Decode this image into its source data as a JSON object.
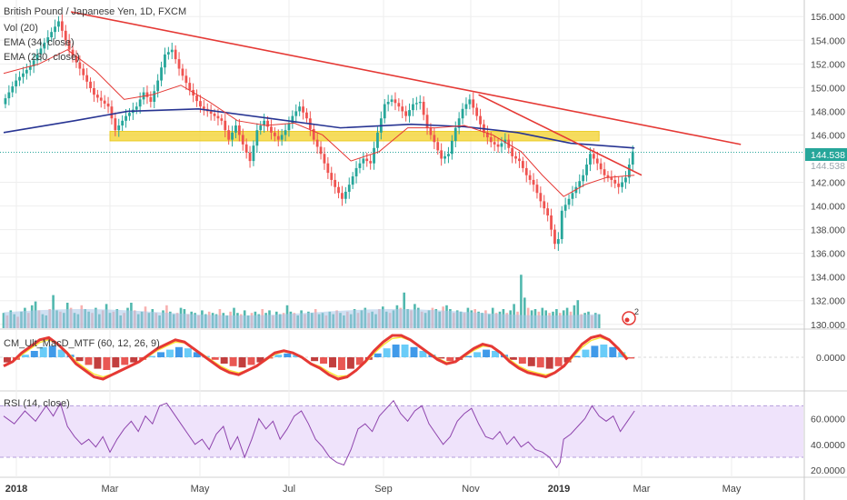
{
  "chart_data": {
    "type": "line",
    "title": "British Pound / Japanese Yen, 1D, FXCM",
    "indicator_labels": [
      "Vol (20)",
      "EMA (34, close)",
      "EMA (230, close)"
    ],
    "macd_label": "CM_Ult_MacD_MTF (60, 12, 26, 9)",
    "rsi_label": "RSI (14, close)",
    "price_axis": {
      "range": [
        129.6,
        157.4
      ],
      "ticks": [
        "156.000",
        "154.000",
        "152.000",
        "150.000",
        "148.000",
        "146.000",
        "142.000",
        "140.000",
        "138.000",
        "136.000",
        "134.000",
        "132.000",
        "130.000"
      ],
      "tick_values": [
        156,
        154,
        152,
        150,
        148,
        146,
        142,
        140,
        138,
        136,
        134,
        132,
        130
      ]
    },
    "last_price": "144.538",
    "last_price_shadow": "144.538",
    "macd_axis": {
      "ticks": [
        "0.0000"
      ]
    },
    "rsi_axis": {
      "ticks": [
        "60.0000",
        "40.0000",
        "20.0000"
      ],
      "tick_values": [
        60,
        40,
        20
      ],
      "range": [
        18,
        78
      ]
    },
    "x_axis": {
      "labels": [
        "2018",
        "Mar",
        "May",
        "Jul",
        "Sep",
        "Nov",
        "2019",
        "Mar",
        "May"
      ]
    },
    "price_path": [
      [
        0,
        148.6
      ],
      [
        4,
        150.6
      ],
      [
        8,
        151.8
      ],
      [
        12,
        153.8
      ],
      [
        16,
        155.6
      ],
      [
        19,
        153.2
      ],
      [
        22,
        151.6
      ],
      [
        26,
        149.4
      ],
      [
        30,
        148.4
      ],
      [
        32,
        146.4
      ],
      [
        35,
        147.6
      ],
      [
        38,
        148.4
      ],
      [
        40,
        149.6
      ],
      [
        42,
        148.8
      ],
      [
        44,
        150.6
      ],
      [
        46,
        152.8
      ],
      [
        48,
        153.2
      ],
      [
        50,
        151.6
      ],
      [
        53,
        149.8
      ],
      [
        56,
        148.4
      ],
      [
        59,
        147.8
      ],
      [
        62,
        147.2
      ],
      [
        64,
        145.6
      ],
      [
        66,
        146.8
      ],
      [
        68,
        145.2
      ],
      [
        70,
        143.8
      ],
      [
        72,
        146.4
      ],
      [
        74,
        147.2
      ],
      [
        76,
        146.2
      ],
      [
        78,
        145.6
      ],
      [
        80,
        146.4
      ],
      [
        82,
        147.6
      ],
      [
        84,
        148.4
      ],
      [
        86,
        147.4
      ],
      [
        88,
        145.6
      ],
      [
        90,
        144.4
      ],
      [
        92,
        142.8
      ],
      [
        94,
        141.6
      ],
      [
        96,
        140.6
      ],
      [
        98,
        141.8
      ],
      [
        100,
        143.2
      ],
      [
        102,
        144.0
      ],
      [
        104,
        143.6
      ],
      [
        106,
        146.2
      ],
      [
        108,
        148.6
      ],
      [
        110,
        149.0
      ],
      [
        112,
        148.4
      ],
      [
        114,
        147.6
      ],
      [
        116,
        148.6
      ],
      [
        118,
        148.8
      ],
      [
        120,
        146.6
      ],
      [
        122,
        145.4
      ],
      [
        124,
        144.0
      ],
      [
        126,
        144.4
      ],
      [
        128,
        146.6
      ],
      [
        130,
        148.2
      ],
      [
        132,
        149.0
      ],
      [
        134,
        147.6
      ],
      [
        136,
        146.2
      ],
      [
        138,
        145.4
      ],
      [
        140,
        145.0
      ],
      [
        142,
        145.6
      ],
      [
        144,
        144.2
      ],
      [
        146,
        143.8
      ],
      [
        148,
        142.6
      ],
      [
        150,
        141.8
      ],
      [
        152,
        140.4
      ],
      [
        154,
        139.2
      ],
      [
        156,
        136.8
      ],
      [
        157,
        137.2
      ],
      [
        158,
        139.6
      ],
      [
        160,
        140.6
      ],
      [
        162,
        141.6
      ],
      [
        164,
        142.6
      ],
      [
        166,
        144.4
      ],
      [
        168,
        143.6
      ],
      [
        170,
        142.6
      ],
      [
        172,
        142.2
      ],
      [
        174,
        141.6
      ],
      [
        176,
        142.4
      ],
      [
        178,
        144.6
      ]
    ],
    "ema34_path": [
      [
        0,
        151.2
      ],
      [
        10,
        152.0
      ],
      [
        18,
        153.2
      ],
      [
        26,
        151.4
      ],
      [
        34,
        149.0
      ],
      [
        42,
        149.4
      ],
      [
        50,
        150.2
      ],
      [
        58,
        148.8
      ],
      [
        66,
        147.2
      ],
      [
        74,
        146.8
      ],
      [
        82,
        147.0
      ],
      [
        90,
        146.0
      ],
      [
        98,
        143.8
      ],
      [
        106,
        144.6
      ],
      [
        114,
        146.6
      ],
      [
        122,
        146.6
      ],
      [
        130,
        146.8
      ],
      [
        138,
        146.0
      ],
      [
        146,
        144.6
      ],
      [
        152,
        142.6
      ],
      [
        158,
        140.8
      ],
      [
        164,
        141.8
      ],
      [
        170,
        142.4
      ],
      [
        178,
        142.6
      ]
    ],
    "ema230_path": [
      [
        0,
        146.2
      ],
      [
        20,
        147.2
      ],
      [
        35,
        148.0
      ],
      [
        55,
        148.2
      ],
      [
        75,
        147.4
      ],
      [
        95,
        146.6
      ],
      [
        115,
        146.9
      ],
      [
        130,
        146.7
      ],
      [
        145,
        146.2
      ],
      [
        160,
        145.3
      ],
      [
        178,
        144.9
      ]
    ],
    "trendlines": [
      {
        "from": [
          19,
          156.4
        ],
        "to": [
          208,
          145.2
        ],
        "color": "#e53935"
      },
      {
        "from": [
          134,
          149.4
        ],
        "to": [
          180,
          142.6
        ],
        "color": "#e53935"
      }
    ],
    "support_zone": {
      "from_day": 30,
      "to_day": 168,
      "low": 145.5,
      "high": 146.3,
      "color": "#f5d742"
    },
    "volume": [
      1.2,
      1.0,
      1.4,
      1.1,
      0.9,
      1.3,
      1.6,
      1.2,
      1.8,
      2.1,
      1.4,
      1.1,
      1.0,
      1.5,
      2.6,
      1.4,
      1.3,
      1.2,
      2.0,
      1.6,
      1.2,
      1.1,
      1.8,
      1.5,
      1.3,
      1.2,
      1.6,
      1.1,
      1.4,
      1.9,
      1.2,
      1.3,
      1.5,
      1.0,
      1.2,
      1.6,
      2.0,
      1.4,
      1.1,
      1.3,
      1.7,
      1.2,
      1.5,
      1.2,
      1.0,
      1.4,
      1.8,
      1.3,
      1.1,
      1.2,
      1.6,
      1.5,
      1.1,
      1.3,
      1.2,
      1.0,
      1.4,
      1.1,
      1.3,
      1.2,
      1.1,
      1.5,
      1.2,
      1.0,
      1.3,
      1.6,
      1.2,
      1.1,
      1.4,
      1.0,
      1.2,
      1.3,
      1.1,
      1.5,
      1.2,
      1.4,
      1.0,
      1.3,
      1.1,
      1.2,
      1.8,
      1.3,
      1.2,
      1.0,
      1.4,
      1.1,
      1.3,
      1.2,
      1.5,
      1.1,
      1.2,
      1.0,
      1.3,
      1.1,
      1.4,
      1.2,
      1.0,
      1.3,
      1.1,
      1.5,
      1.2,
      1.4,
      1.6,
      1.2,
      1.3,
      1.1,
      1.5,
      1.7,
      1.3,
      1.2,
      1.4,
      1.8,
      1.6,
      2.8,
      1.5,
      1.4,
      1.9,
      1.6,
      1.3,
      1.2,
      1.4,
      1.6,
      1.5,
      1.3,
      1.7,
      1.8,
      1.5,
      1.2,
      1.4,
      1.3,
      1.2,
      1.6,
      1.4,
      1.5,
      1.3,
      1.2,
      1.4,
      1.1,
      1.6,
      1.2,
      1.3,
      1.5,
      1.2,
      1.4,
      1.9,
      1.3,
      4.2,
      2.4,
      1.6,
      1.4,
      1.5,
      1.3,
      1.6,
      1.4,
      1.2,
      1.3,
      1.5,
      1.2,
      1.4,
      1.6,
      1.3,
      1.8,
      2.2,
      1.1,
      1.2,
      1.3,
      1.0,
      1.2,
      1.1
    ],
    "rsi_path": [
      [
        0,
        62
      ],
      [
        3,
        56
      ],
      [
        6,
        66
      ],
      [
        9,
        58
      ],
      [
        12,
        70
      ],
      [
        14,
        62
      ],
      [
        16,
        72
      ],
      [
        18,
        54
      ],
      [
        20,
        46
      ],
      [
        22,
        40
      ],
      [
        24,
        44
      ],
      [
        26,
        38
      ],
      [
        28,
        46
      ],
      [
        30,
        34
      ],
      [
        32,
        44
      ],
      [
        34,
        52
      ],
      [
        36,
        58
      ],
      [
        38,
        50
      ],
      [
        40,
        62
      ],
      [
        42,
        56
      ],
      [
        44,
        70
      ],
      [
        46,
        72
      ],
      [
        48,
        64
      ],
      [
        50,
        56
      ],
      [
        52,
        48
      ],
      [
        54,
        40
      ],
      [
        56,
        44
      ],
      [
        58,
        36
      ],
      [
        60,
        48
      ],
      [
        62,
        54
      ],
      [
        64,
        36
      ],
      [
        66,
        46
      ],
      [
        68,
        30
      ],
      [
        70,
        44
      ],
      [
        72,
        60
      ],
      [
        74,
        52
      ],
      [
        76,
        58
      ],
      [
        78,
        44
      ],
      [
        80,
        52
      ],
      [
        82,
        62
      ],
      [
        84,
        66
      ],
      [
        86,
        56
      ],
      [
        88,
        44
      ],
      [
        90,
        38
      ],
      [
        92,
        30
      ],
      [
        94,
        26
      ],
      [
        96,
        24
      ],
      [
        98,
        36
      ],
      [
        100,
        52
      ],
      [
        102,
        56
      ],
      [
        104,
        50
      ],
      [
        106,
        62
      ],
      [
        108,
        68
      ],
      [
        110,
        74
      ],
      [
        112,
        64
      ],
      [
        114,
        58
      ],
      [
        116,
        66
      ],
      [
        118,
        70
      ],
      [
        120,
        56
      ],
      [
        122,
        48
      ],
      [
        124,
        40
      ],
      [
        126,
        46
      ],
      [
        128,
        58
      ],
      [
        130,
        64
      ],
      [
        132,
        68
      ],
      [
        134,
        56
      ],
      [
        136,
        46
      ],
      [
        138,
        44
      ],
      [
        140,
        50
      ],
      [
        142,
        40
      ],
      [
        144,
        46
      ],
      [
        146,
        38
      ],
      [
        148,
        42
      ],
      [
        150,
        36
      ],
      [
        152,
        34
      ],
      [
        154,
        30
      ],
      [
        156,
        22
      ],
      [
        157,
        26
      ],
      [
        158,
        44
      ],
      [
        160,
        48
      ],
      [
        162,
        54
      ],
      [
        164,
        60
      ],
      [
        166,
        70
      ],
      [
        168,
        62
      ],
      [
        170,
        58
      ],
      [
        172,
        62
      ],
      [
        174,
        50
      ],
      [
        176,
        58
      ],
      [
        178,
        66
      ]
    ],
    "macd_hist": [
      -0.4,
      -0.2,
      0.2,
      0.5,
      0.8,
      0.9,
      0.6,
      0.2,
      -0.3,
      -0.6,
      -0.9,
      -1.0,
      -0.8,
      -0.6,
      -0.4,
      -0.2,
      0.1,
      0.4,
      0.6,
      0.8,
      0.7,
      0.4,
      0.1,
      -0.2,
      -0.5,
      -0.7,
      -0.8,
      -0.6,
      -0.4,
      -0.1,
      0.2,
      0.3,
      0.2,
      0.0,
      -0.3,
      -0.5,
      -0.8,
      -1.0,
      -0.9,
      -0.6,
      -0.2,
      0.3,
      0.7,
      1.0,
      1.0,
      0.8,
      0.5,
      0.2,
      -0.1,
      -0.3,
      -0.2,
      0.1,
      0.4,
      0.6,
      0.5,
      0.2,
      -0.2,
      -0.5,
      -0.7,
      -0.8,
      -0.9,
      -0.7,
      -0.4,
      0.1,
      0.6,
      0.9,
      1.0,
      0.8,
      0.4,
      -0.1
    ],
    "annotation": "2",
    "colors": {
      "up": "#26a69a",
      "down": "#ef5350",
      "ema34": "#e53935",
      "ema230": "#283593",
      "rsi": "#8e44ad",
      "rsi_band": "#efe3fb",
      "volume_ema": "#a7c7e7",
      "macd_up": "#00c853",
      "macd_down": "#e53935",
      "grid": "#eeeeee"
    }
  }
}
